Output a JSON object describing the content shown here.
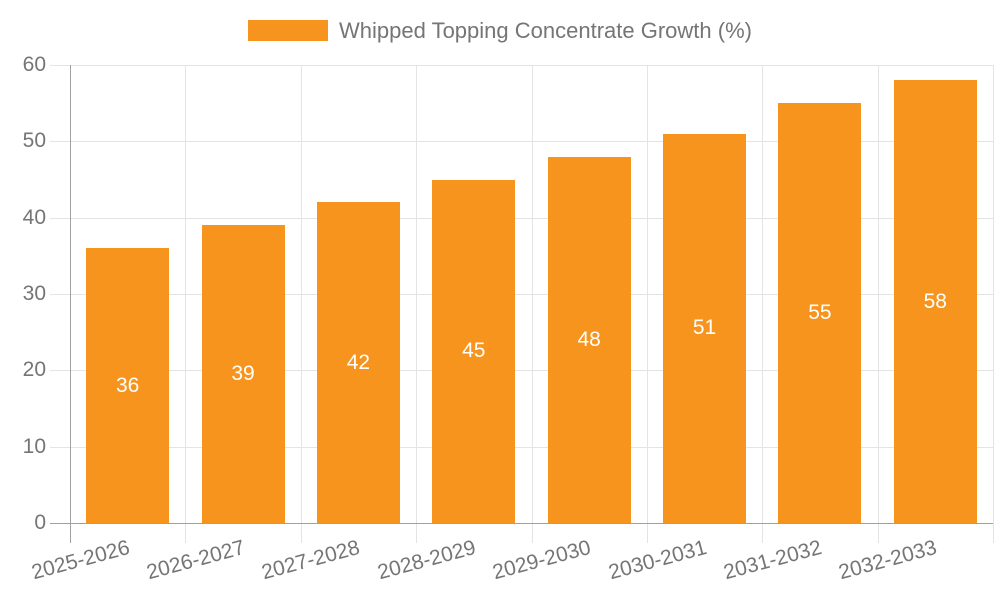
{
  "chart_data": {
    "type": "bar",
    "categories": [
      "2025-2026",
      "2026-2027",
      "2027-2028",
      "2028-2029",
      "2029-2030",
      "2030-2031",
      "2031-2032",
      "2032-2033"
    ],
    "series": [
      {
        "name": "Whipped Topping Concentrate Growth (%)",
        "values": [
          36,
          39,
          42,
          45,
          48,
          51,
          55,
          58
        ]
      }
    ],
    "title": "",
    "xlabel": "",
    "ylabel": "",
    "ylim": [
      0,
      60
    ],
    "y_ticks": [
      0,
      10,
      20,
      30,
      40,
      50,
      60
    ],
    "grid": true,
    "legend_position": "top-center",
    "bar_value_labels_shown": true,
    "colors": {
      "bar": "#F7941E",
      "bar_label": "#FFFFFF",
      "axis_text": "#757575",
      "grid_line": "#E4E4E4",
      "axis_line": "#A0A0A0",
      "background": "#FFFFFF"
    }
  }
}
